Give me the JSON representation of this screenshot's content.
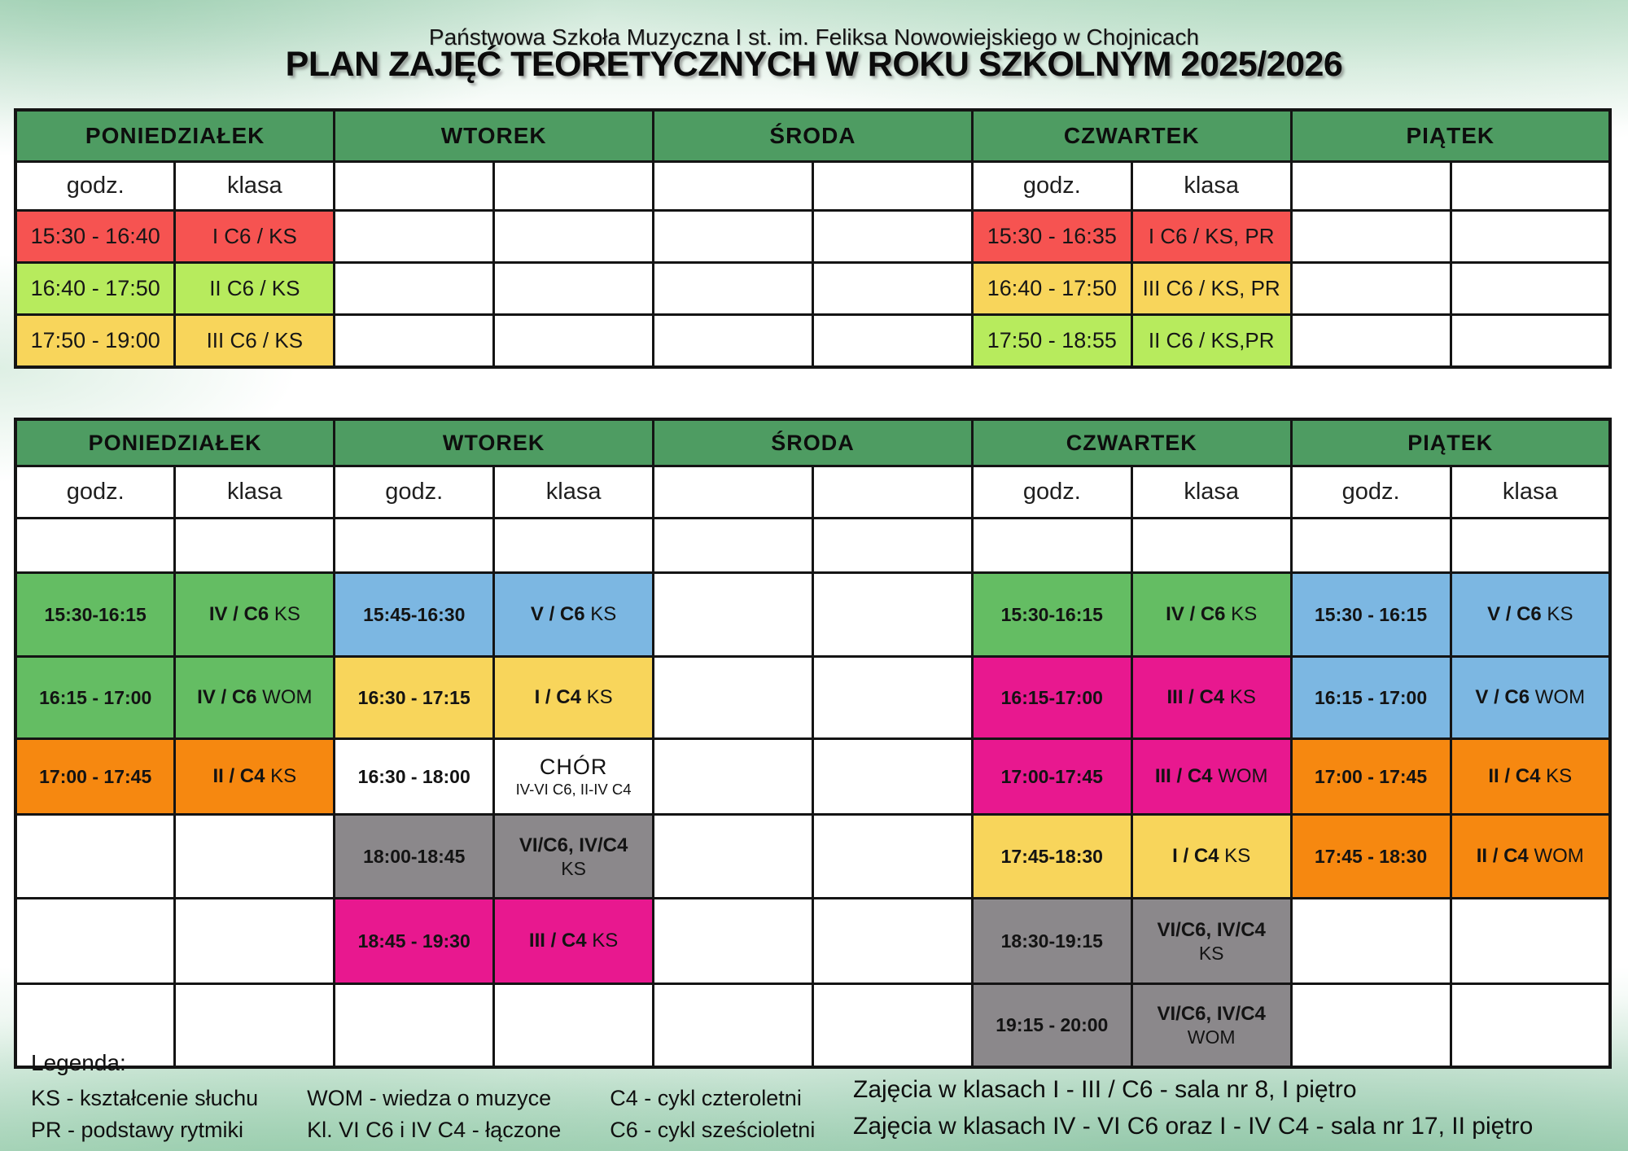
{
  "page": {
    "subtitle": "Państwowa Szkoła Muzyczna I st. im. Feliksa Nowowiejskiego w Chojnicach",
    "title": "PLAN ZAJĘĆ TEORETYCZNYCH W ROKU SZKOLNYM 2025/2026"
  },
  "labels": {
    "time": "godz.",
    "class": "klasa"
  },
  "colors": {
    "header": "#4e9c62",
    "red": "#f65351",
    "lime": "#b7eb5d",
    "yellow": "#f8d55b",
    "green": "#64bd63",
    "blue": "#7cb7e2",
    "orange": "#f68810",
    "magenta": "#e8188f",
    "gray": "#8b888b",
    "white": "#ffffff"
  },
  "table1": {
    "days": [
      {
        "name": "PONIEDZIAŁEK",
        "has_labels": true,
        "rows": [
          {
            "time": "15:30 - 16:40",
            "class_main": "I C6 / KS",
            "color": "red"
          },
          {
            "time": "16:40 - 17:50",
            "class_main": "II C6 / KS",
            "color": "lime"
          },
          {
            "time": "17:50 - 19:00",
            "class_main": "III C6 / KS",
            "color": "yellow"
          }
        ]
      },
      {
        "name": "WTOREK",
        "has_labels": false,
        "rows": [
          null,
          null,
          null
        ]
      },
      {
        "name": "ŚRODA",
        "has_labels": false,
        "rows": [
          null,
          null,
          null
        ]
      },
      {
        "name": "CZWARTEK",
        "has_labels": true,
        "rows": [
          {
            "time": "15:30 - 16:35",
            "class_main": "I C6 / KS, PR",
            "color": "red"
          },
          {
            "time": "16:40 - 17:50",
            "class_main": "III C6 / KS, PR",
            "color": "yellow"
          },
          {
            "time": "17:50 - 18:55",
            "class_main": "II C6 / KS,PR",
            "color": "lime"
          }
        ]
      },
      {
        "name": "PIĄTEK",
        "has_labels": false,
        "rows": [
          null,
          null,
          null
        ]
      }
    ]
  },
  "table2": {
    "days": [
      {
        "name": "PONIEDZIAŁEK",
        "has_labels": true,
        "rows": [
          {
            "time": "15:30-16:15",
            "class_bold": "IV / C6",
            "class_reg": "KS",
            "color": "green"
          },
          {
            "time": "16:15 - 17:00",
            "class_bold": "IV / C6",
            "class_reg": "WOM",
            "color": "green"
          },
          {
            "time": "17:00 - 17:45",
            "class_bold": "II / C4",
            "class_reg": "KS",
            "color": "orange"
          },
          null,
          null,
          null
        ]
      },
      {
        "name": "WTOREK",
        "has_labels": true,
        "rows": [
          {
            "time": "15:45-16:30",
            "class_bold": "V / C6",
            "class_reg": "KS",
            "color": "blue"
          },
          {
            "time": "16:30 - 17:15",
            "class_bold": "I / C4",
            "class_reg": "KS",
            "color": "yellow"
          },
          {
            "time": "16:30 - 18:00",
            "variant": "chor",
            "class_line1": "CHÓR",
            "class_line2": "IV-VI C6, II-IV C4",
            "color": "white"
          },
          {
            "time": "18:00-18:45",
            "variant": "stack",
            "class_line1": "VI/C6, IV/C4",
            "class_line2": "KS",
            "color": "gray"
          },
          {
            "time": "18:45 - 19:30",
            "class_bold": "III / C4",
            "class_reg": "KS",
            "color": "magenta"
          },
          null
        ]
      },
      {
        "name": "ŚRODA",
        "has_labels": false,
        "rows": [
          null,
          null,
          null,
          null,
          null,
          null
        ]
      },
      {
        "name": "CZWARTEK",
        "has_labels": true,
        "rows": [
          {
            "time": "15:30-16:15",
            "class_bold": "IV / C6",
            "class_reg": "KS",
            "color": "green"
          },
          {
            "time": "16:15-17:00",
            "class_bold": "III / C4",
            "class_reg": "KS",
            "color": "magenta"
          },
          {
            "time": "17:00-17:45",
            "class_bold": "III / C4",
            "class_reg": "WOM",
            "color": "magenta"
          },
          {
            "time": "17:45-18:30",
            "class_bold": "I / C4",
            "class_reg": "KS",
            "color": "yellow"
          },
          {
            "time": "18:30-19:15",
            "variant": "stack",
            "class_line1": "VI/C6, IV/C4",
            "class_line2": "KS",
            "color": "gray"
          },
          {
            "time": "19:15 - 20:00",
            "variant": "stack",
            "class_line1": "VI/C6, IV/C4",
            "class_line2": "WOM",
            "color": "gray"
          }
        ]
      },
      {
        "name": "PIĄTEK",
        "has_labels": true,
        "rows": [
          {
            "time": "15:30 - 16:15",
            "class_bold": "V / C6",
            "class_reg": "KS",
            "color": "blue"
          },
          {
            "time": "16:15 - 17:00",
            "class_bold": "V / C6",
            "class_reg": "WOM",
            "color": "blue"
          },
          {
            "time": "17:00 - 17:45",
            "class_bold": "II / C4",
            "class_reg": "KS",
            "color": "orange"
          },
          {
            "time": "17:45 - 18:30",
            "class_bold": "II / C4",
            "class_reg": "WOM",
            "color": "orange"
          },
          null,
          null
        ]
      }
    ]
  },
  "legend": {
    "heading": "Legenda:",
    "columns": [
      [
        "KS - kształcenie słuchu",
        "PR - podstawy rytmiki"
      ],
      [
        "WOM - wiedza o muzyce",
        "Kl. VI C6 i IV C4 - łączone"
      ],
      [
        "C4 - cykl czteroletni",
        "C6 - cykl sześcioletni"
      ]
    ]
  },
  "notes": [
    "Zajęcia w klasach I - III / C6 - sala nr 8, I piętro",
    "Zajęcia w klasach IV - VI C6 oraz I - IV C4 - sala nr 17, II piętro"
  ]
}
